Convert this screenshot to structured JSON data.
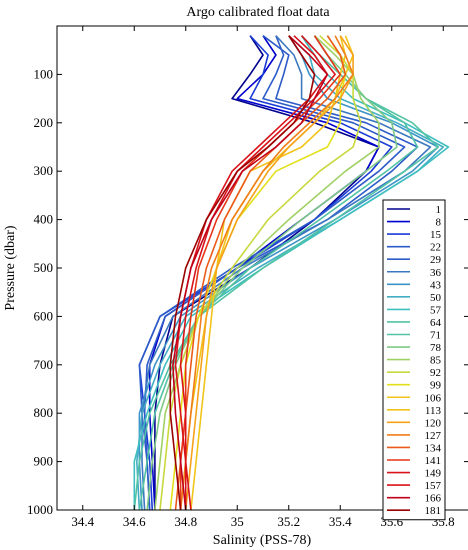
{
  "chart_data": {
    "type": "line",
    "title": "Argo calibrated float data",
    "xlabel": "Salinity (PSS-78)",
    "ylabel": "Pressure (dbar)",
    "xlim": [
      34.3,
      35.9
    ],
    "ylim": [
      1000,
      0
    ],
    "y_reversed": true,
    "grid": false,
    "legend_position": "right",
    "xticks": [
      34.4,
      34.6,
      34.8,
      35,
      35.2,
      35.4,
      35.6,
      35.8
    ],
    "xtick_labels": [
      "34.4",
      "34.6",
      "34.8",
      "35",
      "35.2",
      "35.4",
      "35.6",
      "35.8"
    ],
    "yticks": [
      100,
      200,
      300,
      400,
      500,
      600,
      700,
      800,
      900,
      1000
    ],
    "ytick_labels": [
      "100",
      "200",
      "300",
      "400",
      "500",
      "600",
      "700",
      "800",
      "900",
      "1000"
    ],
    "colors": [
      "#00008f",
      "#0000cc",
      "#1a3cd6",
      "#2d5bc8",
      "#3b78c0",
      "#3d93c8",
      "#43adc3",
      "#3fbfbf",
      "#52c3a3",
      "#7ec985",
      "#9fd064",
      "#c8d83c",
      "#e3e01c",
      "#f2c419",
      "#f5a21a",
      "#f07d1a",
      "#eb5a1a",
      "#e5361a",
      "#d8131a",
      "#c0001a",
      "#9a0000"
    ],
    "series": [
      {
        "name": "1",
        "pressure": [
          20,
          60,
          100,
          150,
          200,
          250,
          300,
          400,
          500,
          600,
          700,
          800,
          900,
          1000
        ],
        "salinity": [
          35.05,
          35.1,
          35.05,
          34.98,
          35.3,
          35.55,
          35.5,
          35.3,
          35.05,
          34.75,
          34.7,
          34.68,
          34.68,
          34.68
        ]
      },
      {
        "name": "8",
        "pressure": [
          20,
          60,
          100,
          150,
          200,
          250,
          300,
          400,
          500,
          600,
          700,
          800,
          900,
          1000
        ],
        "salinity": [
          35.1,
          35.15,
          35.1,
          35.0,
          35.35,
          35.55,
          35.5,
          35.25,
          35.0,
          34.72,
          34.66,
          34.66,
          34.67,
          34.68
        ]
      },
      {
        "name": "15",
        "pressure": [
          20,
          60,
          100,
          150,
          200,
          250,
          300,
          400,
          500,
          600,
          700,
          800,
          900,
          1000
        ],
        "salinity": [
          35.05,
          35.12,
          35.1,
          35.05,
          35.4,
          35.6,
          35.52,
          35.3,
          35.0,
          34.7,
          34.62,
          34.64,
          34.66,
          34.67
        ]
      },
      {
        "name": "22",
        "pressure": [
          20,
          60,
          100,
          150,
          200,
          250,
          300,
          400,
          500,
          600,
          700,
          800,
          900,
          1000
        ],
        "salinity": [
          35.15,
          35.18,
          35.15,
          35.1,
          35.45,
          35.65,
          35.55,
          35.3,
          34.98,
          34.7,
          34.62,
          34.63,
          34.65,
          34.66
        ]
      },
      {
        "name": "29",
        "pressure": [
          20,
          60,
          100,
          150,
          200,
          250,
          300,
          400,
          500,
          600,
          700,
          800,
          900,
          1000
        ],
        "salinity": [
          35.1,
          35.2,
          35.18,
          35.15,
          35.5,
          35.7,
          35.6,
          35.35,
          35.0,
          34.72,
          34.65,
          34.64,
          34.65,
          34.66
        ]
      },
      {
        "name": "36",
        "pressure": [
          20,
          60,
          100,
          150,
          200,
          250,
          300,
          400,
          500,
          600,
          700,
          800,
          900,
          1000
        ],
        "salinity": [
          35.15,
          35.22,
          35.25,
          35.25,
          35.55,
          35.75,
          35.65,
          35.35,
          35.02,
          34.75,
          34.66,
          34.63,
          34.63,
          34.64
        ]
      },
      {
        "name": "43",
        "pressure": [
          20,
          60,
          100,
          150,
          200,
          250,
          300,
          400,
          500,
          600,
          700,
          800,
          900,
          1000
        ],
        "salinity": [
          35.2,
          35.25,
          35.28,
          35.35,
          35.6,
          35.78,
          35.68,
          35.38,
          35.05,
          34.78,
          34.68,
          34.62,
          34.62,
          34.63
        ]
      },
      {
        "name": "50",
        "pressure": [
          20,
          60,
          100,
          150,
          200,
          250,
          300,
          400,
          500,
          600,
          700,
          800,
          900,
          1000
        ],
        "salinity": [
          35.2,
          35.28,
          35.3,
          35.4,
          35.62,
          35.8,
          35.7,
          35.4,
          35.08,
          34.8,
          34.7,
          34.63,
          34.61,
          34.62
        ]
      },
      {
        "name": "57",
        "pressure": [
          20,
          60,
          100,
          150,
          200,
          250,
          300,
          400,
          500,
          600,
          700,
          800,
          900,
          1000
        ],
        "salinity": [
          35.25,
          35.3,
          35.35,
          35.45,
          35.65,
          35.82,
          35.7,
          35.4,
          35.1,
          34.82,
          34.72,
          34.65,
          34.6,
          34.6
        ]
      },
      {
        "name": "64",
        "pressure": [
          20,
          60,
          100,
          150,
          200,
          250,
          300,
          400,
          500,
          600,
          700,
          800,
          900,
          1000
        ],
        "salinity": [
          35.25,
          35.32,
          35.4,
          35.5,
          35.68,
          35.78,
          35.65,
          35.38,
          35.1,
          34.85,
          34.74,
          34.66,
          34.62,
          34.6
        ]
      },
      {
        "name": "71",
        "pressure": [
          20,
          60,
          100,
          150,
          200,
          250,
          300,
          400,
          500,
          600,
          700,
          800,
          900,
          1000
        ],
        "salinity": [
          35.3,
          35.35,
          35.4,
          35.5,
          35.65,
          35.7,
          35.58,
          35.32,
          35.05,
          34.85,
          34.75,
          34.68,
          34.65,
          34.62
        ]
      },
      {
        "name": "78",
        "pressure": [
          20,
          60,
          100,
          150,
          200,
          250,
          300,
          400,
          500,
          600,
          700,
          800,
          900,
          1000
        ],
        "salinity": [
          35.3,
          35.35,
          35.42,
          35.5,
          35.6,
          35.62,
          35.5,
          35.25,
          35.02,
          34.85,
          34.76,
          34.7,
          34.67,
          34.65
        ]
      },
      {
        "name": "85",
        "pressure": [
          20,
          60,
          100,
          150,
          200,
          250,
          300,
          400,
          500,
          600,
          700,
          800,
          900,
          1000
        ],
        "salinity": [
          35.3,
          35.38,
          35.45,
          35.48,
          35.55,
          35.55,
          35.42,
          35.2,
          35.0,
          34.85,
          34.78,
          34.72,
          34.7,
          34.68
        ]
      },
      {
        "name": "92",
        "pressure": [
          20,
          60,
          100,
          150,
          200,
          250,
          300,
          400,
          500,
          600,
          700,
          800,
          900,
          1000
        ],
        "salinity": [
          35.32,
          35.4,
          35.45,
          35.45,
          35.48,
          35.45,
          35.32,
          35.12,
          34.98,
          34.85,
          34.78,
          34.74,
          34.72,
          34.7
        ]
      },
      {
        "name": "99",
        "pressure": [
          20,
          60,
          100,
          150,
          200,
          250,
          300,
          400,
          500,
          600,
          700,
          800,
          900,
          1000
        ],
        "salinity": [
          35.35,
          35.4,
          35.42,
          35.4,
          35.4,
          35.35,
          35.15,
          35.0,
          34.92,
          34.85,
          34.8,
          34.78,
          34.76,
          34.74
        ]
      },
      {
        "name": "106",
        "pressure": [
          20,
          60,
          100,
          150,
          200,
          250,
          300,
          400,
          500,
          600,
          700,
          800,
          900,
          1000
        ],
        "salinity": [
          35.4,
          35.42,
          35.4,
          35.38,
          35.35,
          35.25,
          35.05,
          34.95,
          34.92,
          34.88,
          34.85,
          34.82,
          34.8,
          34.78
        ]
      },
      {
        "name": "113",
        "pressure": [
          20,
          60,
          100,
          150,
          200,
          250,
          300,
          400,
          500,
          600,
          700,
          800,
          900,
          1000
        ],
        "salinity": [
          35.42,
          35.45,
          35.42,
          35.38,
          35.3,
          35.2,
          35.1,
          34.98,
          34.92,
          34.9,
          34.88,
          34.86,
          34.84,
          34.82
        ]
      },
      {
        "name": "120",
        "pressure": [
          20,
          60,
          100,
          150,
          200,
          250,
          300,
          400,
          500,
          600,
          700,
          800,
          900,
          1000
        ],
        "salinity": [
          35.4,
          35.45,
          35.45,
          35.4,
          35.3,
          35.2,
          35.12,
          35.0,
          34.92,
          34.88,
          34.86,
          34.84,
          34.82,
          34.8
        ]
      },
      {
        "name": "127",
        "pressure": [
          20,
          60,
          100,
          150,
          200,
          250,
          300,
          400,
          500,
          600,
          700,
          800,
          900,
          1000
        ],
        "salinity": [
          35.38,
          35.42,
          35.45,
          35.38,
          35.28,
          35.18,
          35.1,
          34.98,
          34.9,
          34.86,
          34.84,
          34.82,
          34.8,
          34.78
        ]
      },
      {
        "name": "134",
        "pressure": [
          20,
          60,
          100,
          150,
          200,
          250,
          300,
          400,
          500,
          600,
          700,
          800,
          900,
          1000
        ],
        "salinity": [
          35.35,
          35.4,
          35.42,
          35.35,
          35.25,
          35.15,
          35.05,
          34.95,
          34.88,
          34.84,
          34.82,
          34.8,
          34.78,
          34.76
        ]
      },
      {
        "name": "141",
        "pressure": [
          20,
          60,
          100,
          150,
          200,
          250,
          300,
          400,
          500,
          600,
          700,
          800,
          900,
          1000
        ],
        "salinity": [
          35.3,
          35.35,
          35.4,
          35.32,
          35.22,
          35.12,
          35.02,
          34.92,
          34.85,
          34.82,
          34.8,
          34.8,
          34.78,
          34.78
        ]
      },
      {
        "name": "149",
        "pressure": [
          20,
          60,
          100,
          150,
          200,
          250,
          300,
          400,
          500,
          600,
          700,
          800,
          900,
          1000
        ],
        "salinity": [
          35.25,
          35.32,
          35.38,
          35.3,
          35.2,
          35.1,
          35.0,
          34.9,
          34.84,
          34.8,
          34.78,
          34.8,
          34.8,
          34.8
        ]
      },
      {
        "name": "157",
        "pressure": [
          20,
          60,
          100,
          150,
          200,
          250,
          300,
          400,
          500,
          600,
          700,
          800,
          900,
          1000
        ],
        "salinity": [
          35.22,
          35.3,
          35.35,
          35.28,
          35.18,
          35.08,
          34.98,
          34.88,
          34.82,
          34.78,
          34.76,
          34.78,
          34.8,
          34.82
        ]
      },
      {
        "name": "166",
        "pressure": [
          20,
          60,
          100,
          150,
          200,
          250,
          300,
          400,
          500,
          600,
          700,
          800,
          900,
          1000
        ],
        "salinity": [
          35.2,
          35.28,
          35.35,
          35.3,
          35.25,
          35.15,
          35.02,
          34.9,
          34.82,
          34.78,
          34.75,
          34.76,
          34.78,
          34.8
        ]
      },
      {
        "name": "181",
        "pressure": [
          20,
          60,
          100,
          150,
          200,
          250,
          300,
          400,
          500,
          600,
          700,
          800,
          900,
          1000
        ],
        "salinity": [
          35.2,
          35.25,
          35.3,
          35.28,
          35.22,
          35.12,
          35.0,
          34.88,
          34.8,
          34.76,
          34.74,
          34.74,
          34.76,
          34.78
        ]
      }
    ]
  }
}
